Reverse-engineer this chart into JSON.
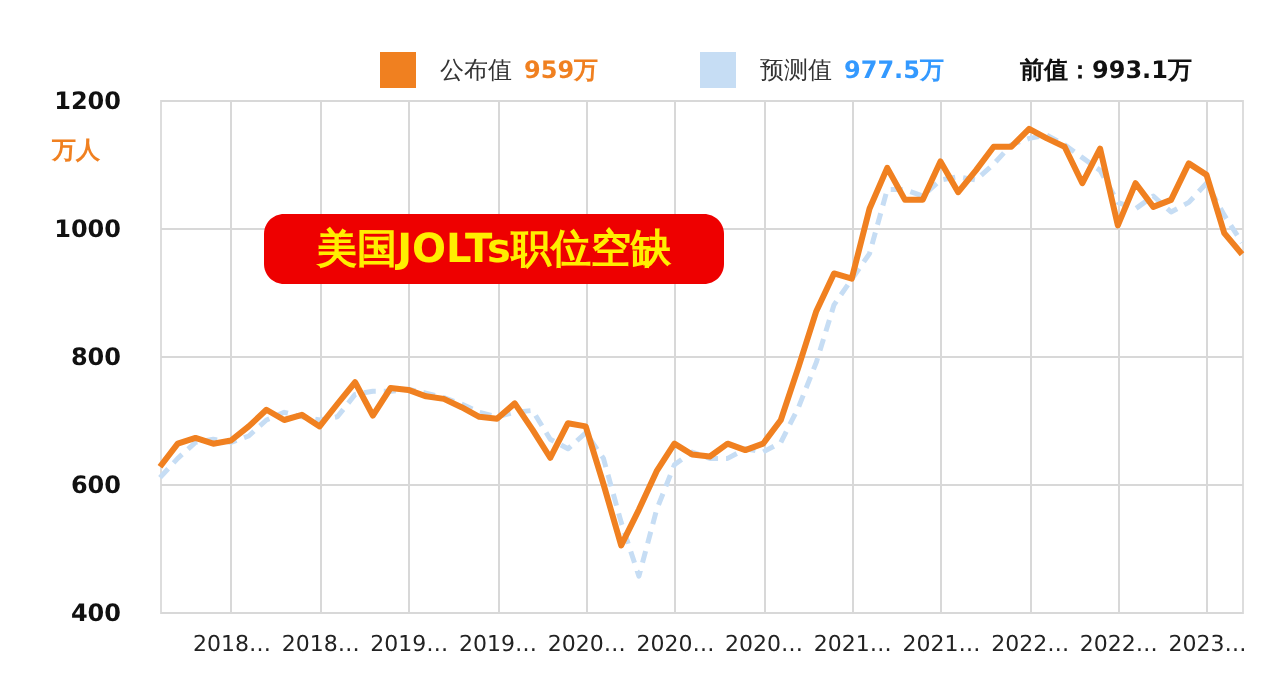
{
  "chart_data": {
    "type": "line",
    "title": "美国JOLTs职位空缺",
    "ylabel": "万人",
    "categories": [
      null,
      null,
      null,
      null,
      "2018…",
      null,
      null,
      null,
      null,
      "2018…",
      null,
      null,
      null,
      null,
      "2019…",
      null,
      null,
      null,
      null,
      "2019…",
      null,
      null,
      null,
      null,
      "2020…",
      null,
      null,
      null,
      null,
      "2020…",
      null,
      null,
      null,
      null,
      "2020…",
      null,
      null,
      null,
      null,
      "2021…",
      null,
      null,
      null,
      null,
      "2021…",
      null,
      null,
      null,
      null,
      "2022…",
      null,
      null,
      null,
      null,
      "2022…",
      null,
      null,
      null,
      null,
      "2023…",
      null,
      null
    ],
    "series": [
      {
        "name": "公布值",
        "color": "#f08020",
        "line_style": "solid",
        "values": [
          627,
          663,
          672,
          663,
          668,
          690,
          716,
          700,
          708,
          690,
          725,
          759,
          707,
          750,
          747,
          737,
          733,
          720,
          705,
          702,
          726,
          685,
          641,
          695,
          690,
          600,
          504,
          560,
          620,
          663,
          646,
          643,
          663,
          653,
          663,
          700,
          783,
          870,
          929,
          921,
          1030,
          1094,
          1044,
          1044,
          1104,
          1056,
          1090,
          1127,
          1127,
          1155,
          1140,
          1127,
          1070,
          1124,
          1004,
          1070,
          1033,
          1044,
          1101,
          1083,
          992,
          959
        ]
      },
      {
        "name": "预测值",
        "color": "#c6ddf4",
        "line_style": "dashed",
        "values": [
          610,
          640,
          665,
          670,
          665,
          675,
          700,
          712,
          705,
          700,
          705,
          740,
          745,
          745,
          748,
          742,
          735,
          725,
          712,
          705,
          712,
          715,
          670,
          655,
          680,
          640,
          540,
          456,
          560,
          630,
          650,
          640,
          640,
          655,
          650,
          665,
          720,
          790,
          880,
          920,
          960,
          1060,
          1060,
          1050,
          1075,
          1080,
          1075,
          1100,
          1130,
          1140,
          1145,
          1130,
          1110,
          1090,
          1040,
          1030,
          1050,
          1025,
          1040,
          1070,
          1020,
          977
        ]
      }
    ],
    "annotations": [
      "959万",
      "977.5万",
      "前值：993.1万"
    ],
    "ylim": [
      400,
      1200
    ],
    "yticks": [
      400,
      600,
      800,
      1000,
      1200
    ],
    "grid": true,
    "legend": "top",
    "marker": "none"
  }
}
